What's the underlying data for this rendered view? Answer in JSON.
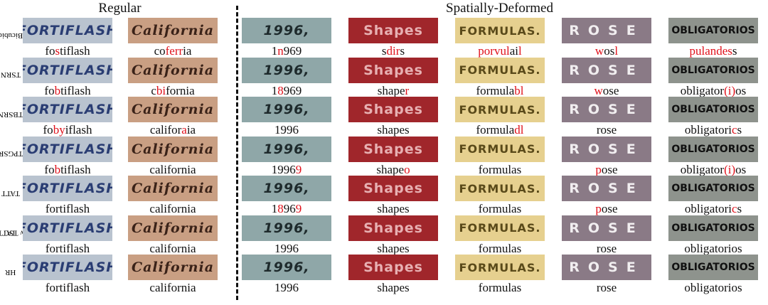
{
  "headers": {
    "regular": "Regular",
    "deformed": "Spatially-Deformed"
  },
  "crops": [
    "FORTIFLASH",
    "California",
    "1996,",
    "Shapes",
    "FORMULAS.",
    "ROSE",
    "OBLIGATORIOS"
  ],
  "rows": [
    {
      "method": [
        "Bicubic"
      ],
      "cells": [
        [
          {
            "text": "fo"
          },
          {
            "text": "s",
            "error": true
          },
          {
            "text": "tiflash"
          }
        ],
        [
          {
            "text": "co"
          },
          {
            "text": "ferr",
            "error": true
          },
          {
            "text": "ia"
          }
        ],
        [
          {
            "text": "1"
          },
          {
            "text": "n",
            "error": true
          },
          {
            "text": "969"
          }
        ],
        [
          {
            "text": "s"
          },
          {
            "text": "dir",
            "error": true
          },
          {
            "text": "s"
          }
        ],
        [
          {
            "text": "porvul",
            "error": true
          },
          {
            "text": "ai"
          },
          {
            "text": "l",
            "error": true
          }
        ],
        [
          {
            "text": "w",
            "error": true
          },
          {
            "text": "os"
          },
          {
            "text": "l",
            "error": true
          }
        ],
        [
          {
            "text": "pulandes",
            "error": true
          },
          {
            "text": "s"
          }
        ]
      ]
    },
    {
      "method": [
        "TSRN"
      ],
      "cells": [
        [
          {
            "text": "fo"
          },
          {
            "text": "b",
            "error": true
          },
          {
            "text": "tiflash"
          }
        ],
        [
          {
            "text": "c"
          },
          {
            "text": "bi",
            "error": true
          },
          {
            "text": "fornia"
          }
        ],
        [
          {
            "text": "1"
          },
          {
            "text": "8",
            "error": true
          },
          {
            "text": "969"
          }
        ],
        [
          {
            "text": "shape"
          },
          {
            "text": "r",
            "error": true
          }
        ],
        [
          {
            "text": "formula"
          },
          {
            "text": "bl",
            "error": true
          }
        ],
        [
          {
            "text": "w",
            "error": true
          },
          {
            "text": "ose"
          }
        ],
        [
          {
            "text": "obligator"
          },
          {
            "text": "(i)",
            "error": true
          },
          {
            "text": "os"
          }
        ]
      ]
    },
    {
      "method": [
        "TBSRN"
      ],
      "cells": [
        [
          {
            "text": "fo"
          },
          {
            "text": "by",
            "error": true
          },
          {
            "text": "iflash"
          }
        ],
        [
          {
            "text": "califor"
          },
          {
            "text": "a",
            "error": true
          },
          {
            "text": "ia"
          }
        ],
        [
          {
            "text": "1996"
          }
        ],
        [
          {
            "text": "shapes"
          }
        ],
        [
          {
            "text": "formula"
          },
          {
            "text": "dl",
            "error": true
          }
        ],
        [
          {
            "text": "rose"
          }
        ],
        [
          {
            "text": "obligatori"
          },
          {
            "text": "c",
            "error": true
          },
          {
            "text": "s"
          }
        ]
      ]
    },
    {
      "method": [
        "TPGSR"
      ],
      "cells": [
        [
          {
            "text": "fo"
          },
          {
            "text": "b",
            "error": true
          },
          {
            "text": "tiflash"
          }
        ],
        [
          {
            "text": "california"
          }
        ],
        [
          {
            "text": "1996"
          },
          {
            "text": "9",
            "error": true
          }
        ],
        [
          {
            "text": "shape"
          },
          {
            "text": "o",
            "error": true
          }
        ],
        [
          {
            "text": "formulas"
          }
        ],
        [
          {
            "text": "p",
            "error": true
          },
          {
            "text": "ose"
          }
        ],
        [
          {
            "text": "obligator"
          },
          {
            "text": "(i)",
            "error": true
          },
          {
            "text": "os"
          }
        ]
      ]
    },
    {
      "method": [
        "TATT"
      ],
      "cells": [
        [
          {
            "text": "fortiflash"
          }
        ],
        [
          {
            "text": "california"
          }
        ],
        [
          {
            "text": "1"
          },
          {
            "text": "8",
            "error": true
          },
          {
            "text": "96"
          },
          {
            "text": "9",
            "error": true
          }
        ],
        [
          {
            "text": "shapes"
          }
        ],
        [
          {
            "text": "formulas"
          }
        ],
        [
          {
            "text": "p",
            "error": true
          },
          {
            "text": "ose"
          }
        ],
        [
          {
            "text": "obligatori"
          },
          {
            "text": "c",
            "error": true
          },
          {
            "text": "s"
          }
        ]
      ]
    },
    {
      "method": [
        "TATT",
        "w TSC"
      ],
      "cells": [
        [
          {
            "text": "fortiflash"
          }
        ],
        [
          {
            "text": "california"
          }
        ],
        [
          {
            "text": "1996"
          }
        ],
        [
          {
            "text": "shapes"
          }
        ],
        [
          {
            "text": "formulas"
          }
        ],
        [
          {
            "text": "rose"
          }
        ],
        [
          {
            "text": "obligatorios"
          }
        ]
      ]
    },
    {
      "method": [
        "HR"
      ],
      "cells": [
        [
          {
            "text": "fortiflash"
          }
        ],
        [
          {
            "text": "california"
          }
        ],
        [
          {
            "text": "1996"
          }
        ],
        [
          {
            "text": "shapes"
          }
        ],
        [
          {
            "text": "formulas"
          }
        ],
        [
          {
            "text": "rose"
          }
        ],
        [
          {
            "text": "obligatorios"
          }
        ]
      ]
    }
  ]
}
